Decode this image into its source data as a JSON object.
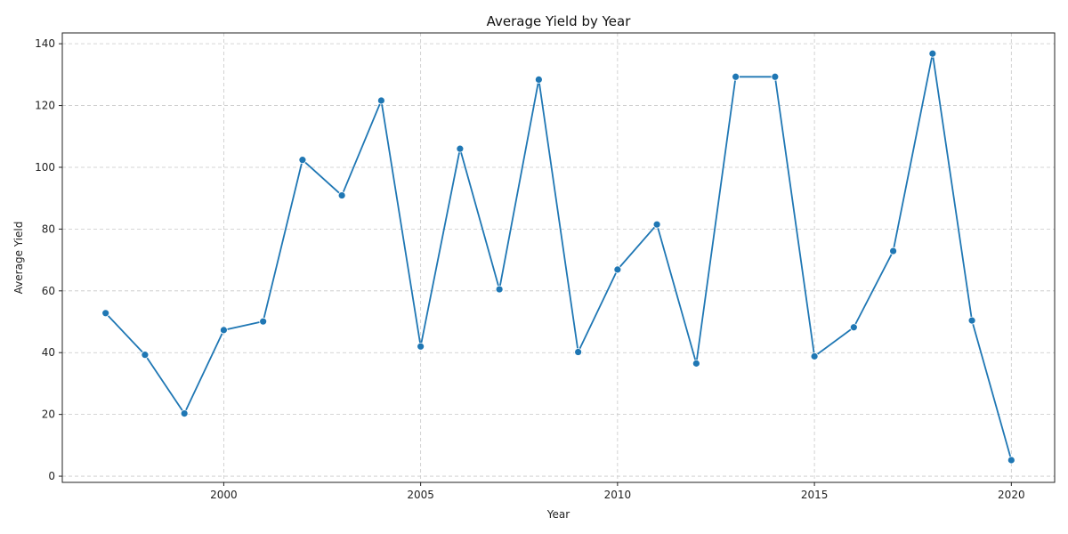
{
  "chart_data": {
    "type": "line",
    "title": "Average Yield by Year",
    "xlabel": "Year",
    "ylabel": "Average Yield",
    "xlim": [
      1995.9,
      2021.1
    ],
    "ylim": [
      -2,
      143.5
    ],
    "xticks": [
      2000,
      2005,
      2010,
      2015,
      2020
    ],
    "yticks": [
      0,
      20,
      40,
      60,
      80,
      100,
      120,
      140
    ],
    "grid": true,
    "line_color": "#1f77b4",
    "series": [
      {
        "x": [
          1997,
          1998,
          1999,
          2000,
          2001,
          2002,
          2003,
          2004,
          2005,
          2006,
          2007,
          2008,
          2009,
          2010,
          2011,
          2012,
          2013,
          2014,
          2015,
          2016,
          2017,
          2018,
          2019,
          2020
        ],
        "y": [
          52.8,
          39.3,
          20.3,
          47.3,
          50.1,
          102.4,
          90.9,
          121.6,
          42.0,
          106.0,
          60.5,
          128.4,
          40.2,
          66.9,
          81.5,
          36.5,
          129.3,
          129.3,
          38.8,
          48.2,
          72.9,
          136.8,
          50.4,
          5.2
        ]
      }
    ]
  }
}
